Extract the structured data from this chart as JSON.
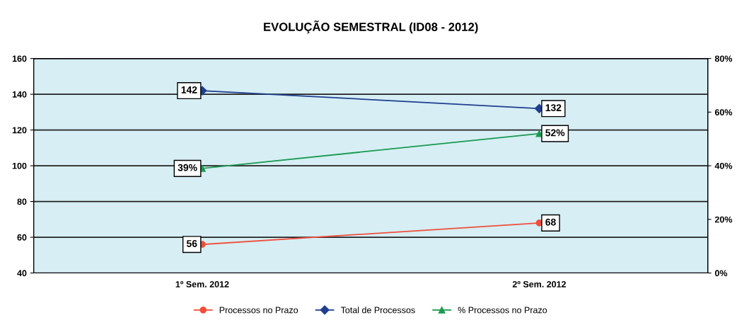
{
  "chart_data": {
    "type": "line",
    "title": "EVOLUÇÃO SEMESTRAL (ID08 - 2012)",
    "categories": [
      "1º Sem. 2012",
      "2º Sem. 2012"
    ],
    "series": [
      {
        "name": "Processos no Prazo",
        "color": "#f04e3a",
        "marker": "circle",
        "values": [
          56,
          68
        ],
        "value_labels": [
          "56",
          "68"
        ]
      },
      {
        "name": "Total de Processos",
        "color": "#1f3f8f",
        "marker": "diamond",
        "values": [
          142,
          132
        ],
        "value_labels": [
          "142",
          "132"
        ]
      },
      {
        "name": "% Processos no Prazo",
        "color": "#1a9a50",
        "marker": "triangle",
        "axis": "y2",
        "values": [
          39,
          52
        ],
        "value_labels": [
          "39%",
          "52%"
        ]
      }
    ],
    "ylim": [
      40,
      160
    ],
    "yticks": [
      40,
      60,
      80,
      100,
      120,
      140,
      160
    ],
    "y2lim": [
      0,
      80
    ],
    "y2ticks": [
      {
        "value": 0,
        "label": "0%"
      },
      {
        "value": 20,
        "label": "20%"
      },
      {
        "value": 40,
        "label": "40%"
      },
      {
        "value": 60,
        "label": "60%"
      },
      {
        "value": 80,
        "label": "80%"
      }
    ],
    "grid": "y",
    "legend": "bottom"
  }
}
